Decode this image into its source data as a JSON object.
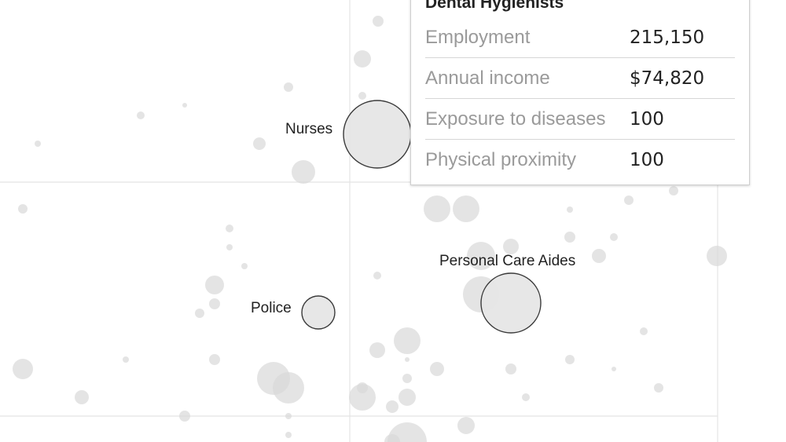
{
  "chart_data": {
    "type": "scatter",
    "title": "",
    "xlabel": "",
    "ylabel": "",
    "highlighted": [
      {
        "name": "Nurses",
        "label": "Nurses"
      },
      {
        "name": "Personal Care Aides",
        "label": "Personal Care Aides"
      },
      {
        "name": "Police",
        "label": "Police"
      }
    ]
  },
  "tooltip": {
    "title": "Dental Hygienists",
    "rows": [
      {
        "label": "Employment",
        "value": "215,150"
      },
      {
        "label": "Annual income",
        "value": "$74,820"
      },
      {
        "label": "Exposure to diseases",
        "value": "100"
      },
      {
        "label": "Physical proximity",
        "value": "100"
      }
    ]
  }
}
